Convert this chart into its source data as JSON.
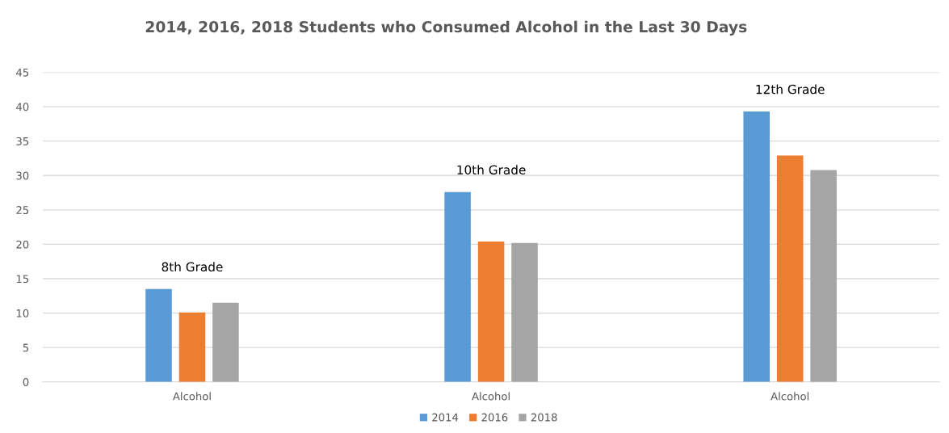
{
  "chart_data": {
    "type": "bar",
    "title": "2014, 2016, 2018 Students who Consumed Alcohol in the Last 30 Days",
    "categories": [
      "Alcohol",
      "Alcohol",
      "Alcohol"
    ],
    "series": [
      {
        "name": "2014",
        "color": "#5b9bd5",
        "values": [
          13.5,
          27.6,
          39.3
        ]
      },
      {
        "name": "2016",
        "color": "#ed7d31",
        "values": [
          10.1,
          20.4,
          32.9
        ]
      },
      {
        "name": "2018",
        "color": "#a5a5a5",
        "values": [
          11.5,
          20.2,
          30.8
        ]
      }
    ],
    "annotations": [
      "8th Grade",
      "10th Grade",
      "12th Grade"
    ],
    "ylim": [
      0,
      45
    ],
    "yticks": [
      0,
      5,
      10,
      15,
      20,
      25,
      30,
      35,
      40,
      45
    ],
    "grid": "y",
    "legend": "bottom"
  }
}
